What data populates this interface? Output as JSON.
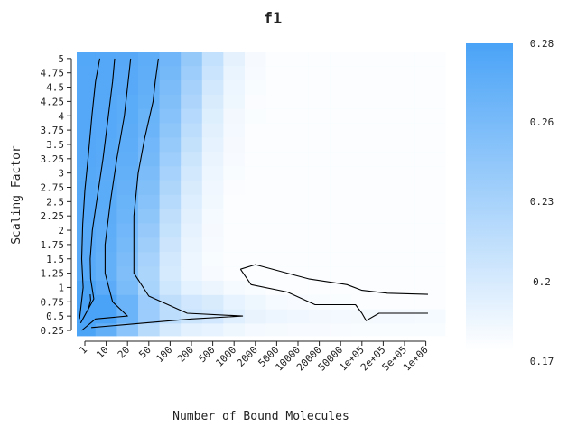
{
  "chart_data": {
    "type": "heatmap",
    "title": "f1",
    "xlabel": "Number of Bound Molecules",
    "ylabel": "Scaling Factor",
    "x_categories": [
      "1",
      "10",
      "20",
      "50",
      "100",
      "200",
      "500",
      "1000",
      "2000",
      "5000",
      "10000",
      "20000",
      "50000",
      "1e+05",
      "2e+05",
      "5e+05",
      "1e+06"
    ],
    "y_categories": [
      "0.25",
      "0.5",
      "0.75",
      "1",
      "1.25",
      "1.5",
      "1.75",
      "2",
      "2.25",
      "2.5",
      "2.75",
      "3",
      "3.25",
      "3.5",
      "3.75",
      "4",
      "4.25",
      "4.5",
      "4.75",
      "5"
    ],
    "colorbar": {
      "ticks": [
        "0.28",
        "0.26",
        "0.23",
        "0.2",
        "0.17"
      ],
      "range": [
        0.17,
        0.28
      ],
      "low_color": "#ffffff",
      "high_color": "#4aa3f7"
    },
    "grid": false,
    "legend": "right",
    "contours": [
      {
        "points": [
          [
            0.25,
            0.88
          ],
          [
            0.27,
            0.78
          ],
          [
            0.15,
            0.6
          ]
        ]
      },
      {
        "points": [
          [
            0.7,
            5.0
          ],
          [
            0.5,
            4.6
          ],
          [
            0.33,
            4.0
          ],
          [
            0.15,
            3.25
          ],
          [
            0.0,
            2.7
          ],
          [
            -0.1,
            2.1
          ],
          [
            -0.15,
            1.5
          ],
          [
            -0.08,
            1.0
          ],
          [
            -0.25,
            0.45
          ]
        ]
      },
      {
        "points": [
          [
            1.4,
            5.0
          ],
          [
            1.3,
            4.6
          ],
          [
            1.1,
            4.0
          ],
          [
            0.85,
            3.25
          ],
          [
            0.55,
            2.5
          ],
          [
            0.35,
            2.0
          ],
          [
            0.25,
            1.5
          ],
          [
            0.27,
            1.15
          ],
          [
            0.42,
            0.8
          ],
          [
            -0.2,
            0.38
          ]
        ]
      },
      {
        "points": [
          [
            2.15,
            5.0
          ],
          [
            2.0,
            4.5
          ],
          [
            1.85,
            4.0
          ],
          [
            1.5,
            3.25
          ],
          [
            1.2,
            2.5
          ],
          [
            0.95,
            1.75
          ],
          [
            0.95,
            1.25
          ],
          [
            1.3,
            0.75
          ],
          [
            2.0,
            0.5
          ],
          [
            0.5,
            0.45
          ],
          [
            -0.15,
            0.25
          ]
        ]
      },
      {
        "points": [
          [
            3.45,
            5.0
          ],
          [
            3.3,
            4.6
          ],
          [
            3.2,
            4.25
          ],
          [
            2.8,
            3.6
          ],
          [
            2.5,
            3.0
          ],
          [
            2.3,
            2.25
          ],
          [
            2.3,
            1.75
          ],
          [
            2.3,
            1.25
          ],
          [
            3.0,
            0.85
          ],
          [
            4.8,
            0.55
          ],
          [
            7.4,
            0.5
          ],
          [
            5.0,
            0.45
          ],
          [
            0.3,
            0.3
          ]
        ]
      },
      {
        "points": [
          [
            7.3,
            1.32
          ],
          [
            8.0,
            1.4
          ],
          [
            9.5,
            1.25
          ],
          [
            10.5,
            1.15
          ],
          [
            12.3,
            1.05
          ],
          [
            13.0,
            0.95
          ],
          [
            14.2,
            0.9
          ],
          [
            16.1,
            0.88
          ]
        ]
      },
      {
        "points": [
          [
            7.3,
            1.32
          ],
          [
            7.8,
            1.05
          ],
          [
            9.5,
            0.92
          ],
          [
            10.8,
            0.7
          ],
          [
            12.7,
            0.7
          ],
          [
            13.0,
            0.55
          ],
          [
            13.2,
            0.42
          ],
          [
            13.8,
            0.55
          ],
          [
            16.1,
            0.55
          ]
        ]
      }
    ]
  }
}
